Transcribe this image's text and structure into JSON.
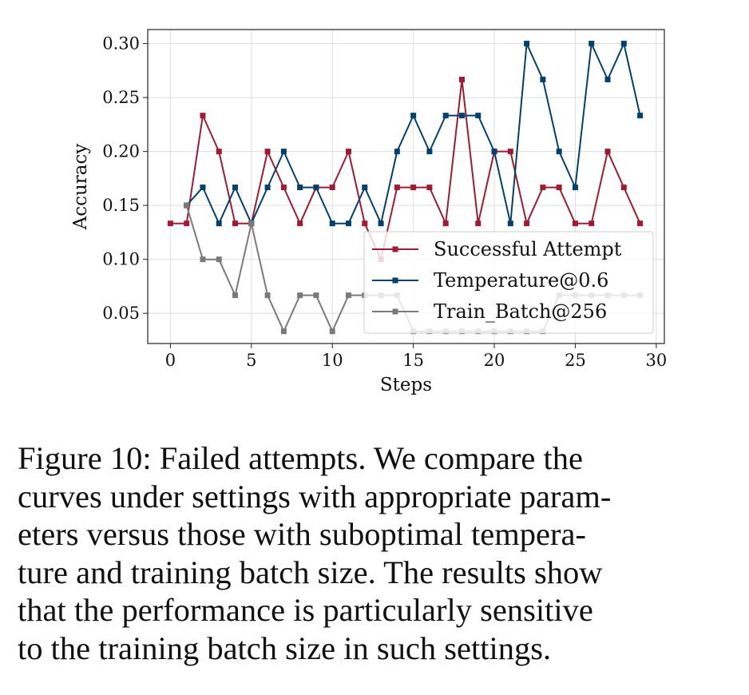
{
  "chart_data": {
    "type": "line",
    "xlabel": "Steps",
    "ylabel": "Accuracy",
    "xlim": [
      -1.4,
      30.5
    ],
    "ylim": [
      0.022,
      0.313
    ],
    "xticks": [
      0,
      5,
      10,
      15,
      20,
      25,
      30
    ],
    "xtick_labels": [
      "0",
      "5",
      "10",
      "15",
      "20",
      "25",
      "30"
    ],
    "yticks": [
      0.05,
      0.1,
      0.15,
      0.2,
      0.25,
      0.3
    ],
    "ytick_labels": [
      "0.05",
      "0.10",
      "0.15",
      "0.20",
      "0.25",
      "0.30"
    ],
    "grid": true,
    "legend_position": "lower-right",
    "series": [
      {
        "name": "Successful Attempt",
        "color": "#9e1b34",
        "x": [
          0,
          1,
          2,
          3,
          4,
          5,
          6,
          7,
          8,
          9,
          10,
          11,
          12,
          13,
          14,
          15,
          16,
          17,
          18,
          19,
          20,
          21,
          22,
          23,
          24,
          25,
          26,
          27,
          28,
          29
        ],
        "values": [
          0.1333,
          0.1333,
          0.2333,
          0.2,
          0.1333,
          0.1333,
          0.2,
          0.1667,
          0.1333,
          0.1667,
          0.1667,
          0.2,
          0.1333,
          0.1,
          0.1667,
          0.1667,
          0.1667,
          0.1333,
          0.2667,
          0.1333,
          0.2,
          0.2,
          0.1333,
          0.1667,
          0.1667,
          0.1333,
          0.1333,
          0.2,
          0.1667,
          0.1333
        ]
      },
      {
        "name": "Temperature@0.6",
        "color": "#053f6b",
        "x": [
          1,
          2,
          3,
          4,
          5,
          6,
          7,
          8,
          9,
          10,
          11,
          12,
          13,
          14,
          15,
          16,
          17,
          18,
          19,
          20,
          21,
          22,
          23,
          24,
          25,
          26,
          27,
          28,
          29
        ],
        "values": [
          0.15,
          0.1667,
          0.1333,
          0.1667,
          0.1333,
          0.1667,
          0.2,
          0.1667,
          0.1667,
          0.1333,
          0.1333,
          0.1667,
          0.1333,
          0.2,
          0.2333,
          0.2,
          0.2333,
          0.2333,
          0.2333,
          0.2,
          0.1333,
          0.3,
          0.2667,
          0.2,
          0.1667,
          0.3,
          0.2667,
          0.3,
          0.2333
        ]
      },
      {
        "name": "Train_Batch@256",
        "color": "#7a7a7a",
        "x": [
          1,
          2,
          3,
          4,
          5,
          6,
          7,
          8,
          9,
          10,
          11,
          12,
          13,
          14,
          15,
          16,
          17,
          18,
          19,
          20,
          21,
          22,
          23,
          24,
          25,
          26,
          27,
          28,
          29
        ],
        "values": [
          0.15,
          0.1,
          0.1,
          0.0667,
          0.1333,
          0.0667,
          0.0333,
          0.0667,
          0.0667,
          0.0333,
          0.0667,
          0.0667,
          0.0667,
          0.0667,
          0.0333,
          0.0333,
          0.0333,
          0.0333,
          0.0333,
          0.0333,
          0.0333,
          0.0333,
          0.0333,
          0.0667,
          0.0667,
          0.0667,
          0.0667,
          0.0667,
          0.0667
        ]
      }
    ]
  },
  "caption": {
    "lines": [
      "Figure 10: Failed attempts.  We compare the",
      "curves under settings with appropriate param-",
      "eters versus those with suboptimal tempera-",
      "ture and training batch size. The results show",
      "that the performance is particularly sensitive",
      "to the training batch size in such settings."
    ]
  }
}
